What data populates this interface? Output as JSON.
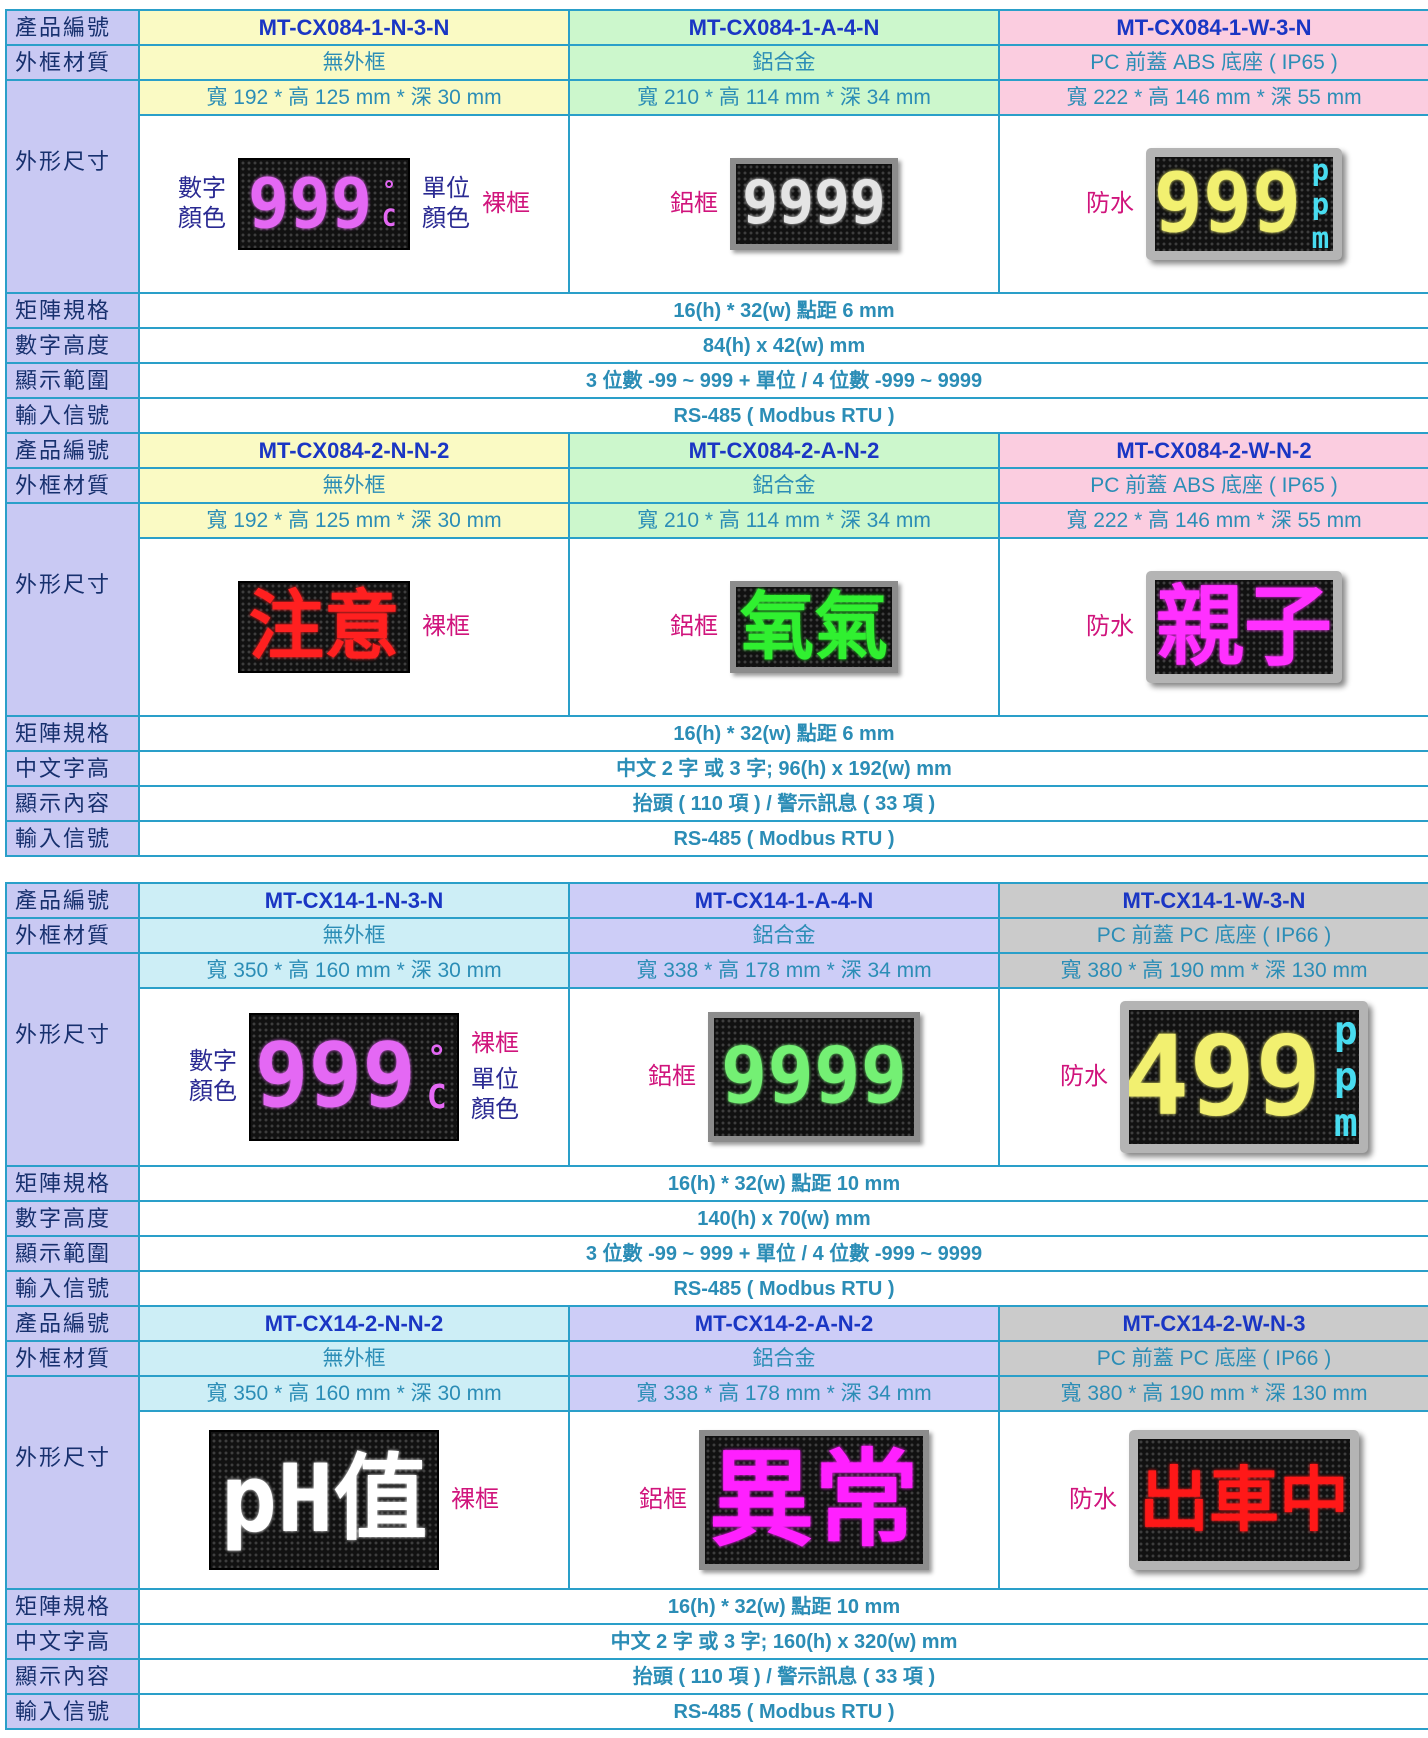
{
  "blocks": [
    {
      "column_colors": [
        "#fafac4",
        "#ccf7cc",
        "#fbcde0"
      ],
      "product": {
        "label": "產品編號",
        "values": [
          "MT-CX084-1-N-3-N",
          "MT-CX084-1-A-4-N",
          "MT-CX084-1-W-3-N"
        ]
      },
      "material": {
        "label": "外框材質",
        "values": [
          "無外框",
          "鋁合金",
          "PC 前蓋 ABS 底座 ( IP65 )"
        ]
      },
      "size": {
        "label": "外形尺寸",
        "values": [
          "寬 192 * 高 125 mm * 深 30 mm",
          "寬 210 * 高 114 mm * 深 34 mm",
          "寬 222 * 高 146 mm * 深 55 mm"
        ],
        "images": [
          {
            "display": "999",
            "unit": "°C",
            "color": "#e468f4",
            "digit_caption": [
              "數字",
              "顏色"
            ],
            "unit_caption": [
              "單位",
              "顏色"
            ],
            "frame": "裸框"
          },
          {
            "display": "9999",
            "color": "#e4e4e4",
            "frame": "鋁框"
          },
          {
            "display": "999",
            "unit": "ppm",
            "color": "#f2f070",
            "unit_color": "#48dcf0",
            "frame": "防水"
          }
        ]
      },
      "specs": [
        {
          "label": "矩陣規格",
          "value": "16(h) * 32(w)  點距 6 mm"
        },
        {
          "label": "數字高度",
          "value": "84(h) x 42(w) mm"
        },
        {
          "label": "顯示範圍",
          "value": "3 位數 -99 ~ 999 + 單位 / 4 位數 -999 ~ 9999"
        },
        {
          "label": "輸入信號",
          "value": "RS-485 ( Modbus RTU )"
        }
      ]
    },
    {
      "column_colors": [
        "#fafac4",
        "#ccf7cc",
        "#fbcde0"
      ],
      "product": {
        "label": "產品編號",
        "values": [
          "MT-CX084-2-N-N-2",
          "MT-CX084-2-A-N-2",
          "MT-CX084-2-W-N-2"
        ]
      },
      "material": {
        "label": "外框材質",
        "values": [
          "無外框",
          "鋁合金",
          "PC 前蓋 ABS 底座 ( IP65 )"
        ]
      },
      "size": {
        "label": "外形尺寸",
        "values": [
          "寬 192 * 高 125 mm * 深 30 mm",
          "寬 210 * 高 114 mm * 深 34 mm",
          "寬 222 * 高 146 mm * 深 55 mm"
        ],
        "images": [
          {
            "display": "注意",
            "color": "#ff2020",
            "frame": "裸框"
          },
          {
            "display": "氧氣",
            "color": "#30f030",
            "frame": "鋁框"
          },
          {
            "display": "親子",
            "color": "#ff30ff",
            "frame": "防水"
          }
        ]
      },
      "specs": [
        {
          "label": "矩陣規格",
          "value": "16(h) * 32(w)  點距 6 mm"
        },
        {
          "label": "中文字高",
          "value": "中文 2 字 或 3 字; 96(h) x 192(w) mm"
        },
        {
          "label": "顯示內容",
          "value": "抬頭 ( 110 項 ) / 警示訊息 ( 33 項 )"
        },
        {
          "label": "輸入信號",
          "value": "RS-485 ( Modbus RTU )"
        }
      ]
    },
    {
      "column_colors": [
        "#cdeef6",
        "#cdcdf7",
        "#cbcbcb"
      ],
      "product": {
        "label": "產品編號",
        "values": [
          "MT-CX14-1-N-3-N",
          "MT-CX14-1-A-4-N",
          "MT-CX14-1-W-3-N"
        ]
      },
      "material": {
        "label": "外框材質",
        "values": [
          "無外框",
          "鋁合金",
          "PC 前蓋 PC 底座 ( IP66 )"
        ]
      },
      "size": {
        "label": "外形尺寸",
        "values": [
          "寬 350 * 高 160 mm * 深 30 mm",
          "寬 338 * 高 178 mm * 深 34 mm",
          "寬 380 * 高 190 mm * 深 130 mm"
        ],
        "images": [
          {
            "display": "999",
            "unit": "°C",
            "color": "#e468f4",
            "digit_caption": [
              "數字",
              "顏色"
            ],
            "unit_caption": [
              "單位",
              "顏色"
            ],
            "frame": "裸框"
          },
          {
            "display": "9999",
            "color": "#74f074",
            "frame": "鋁框"
          },
          {
            "display": "499",
            "unit": "ppm",
            "color": "#f2f070",
            "unit_color": "#48dcf0",
            "frame": "防水"
          }
        ]
      },
      "specs": [
        {
          "label": "矩陣規格",
          "value": "16(h) * 32(w)  點距 10 mm"
        },
        {
          "label": "數字高度",
          "value": "140(h) x 70(w) mm"
        },
        {
          "label": "顯示範圍",
          "value": "3 位數 -99 ~ 999 + 單位 / 4 位數 -999 ~ 9999"
        },
        {
          "label": "輸入信號",
          "value": "RS-485 ( Modbus RTU )"
        }
      ]
    },
    {
      "column_colors": [
        "#cdeef6",
        "#cdcdf7",
        "#cbcbcb"
      ],
      "product": {
        "label": "產品編號",
        "values": [
          "MT-CX14-2-N-N-2",
          "MT-CX14-2-A-N-2",
          "MT-CX14-2-W-N-3"
        ]
      },
      "material": {
        "label": "外框材質",
        "values": [
          "無外框",
          "鋁合金",
          "PC 前蓋 PC 底座 ( IP66 )"
        ]
      },
      "size": {
        "label": "外形尺寸",
        "values": [
          "寬 350 * 高 160 mm * 深 30 mm",
          "寬 338 * 高 178 mm * 深 34 mm",
          "寬 380 * 高 190 mm * 深 130 mm"
        ],
        "images": [
          {
            "display": "pH值",
            "color": "#ffffff",
            "frame": "裸框"
          },
          {
            "display": "異常",
            "color": "#ff20ff",
            "frame": "鋁框"
          },
          {
            "display": "出車中",
            "color": "#ff1818",
            "frame": "防水"
          }
        ]
      },
      "specs": [
        {
          "label": "矩陣規格",
          "value": "16(h) * 32(w)  點距 10 mm"
        },
        {
          "label": "中文字高",
          "value": "中文 2 字 或 3 字; 160(h) x 320(w) mm"
        },
        {
          "label": "顯示內容",
          "value": "抬頭 ( 110 項 ) / 警示訊息 ( 33 項 )"
        },
        {
          "label": "輸入信號",
          "value": "RS-485 ( Modbus RTU )"
        }
      ]
    }
  ]
}
